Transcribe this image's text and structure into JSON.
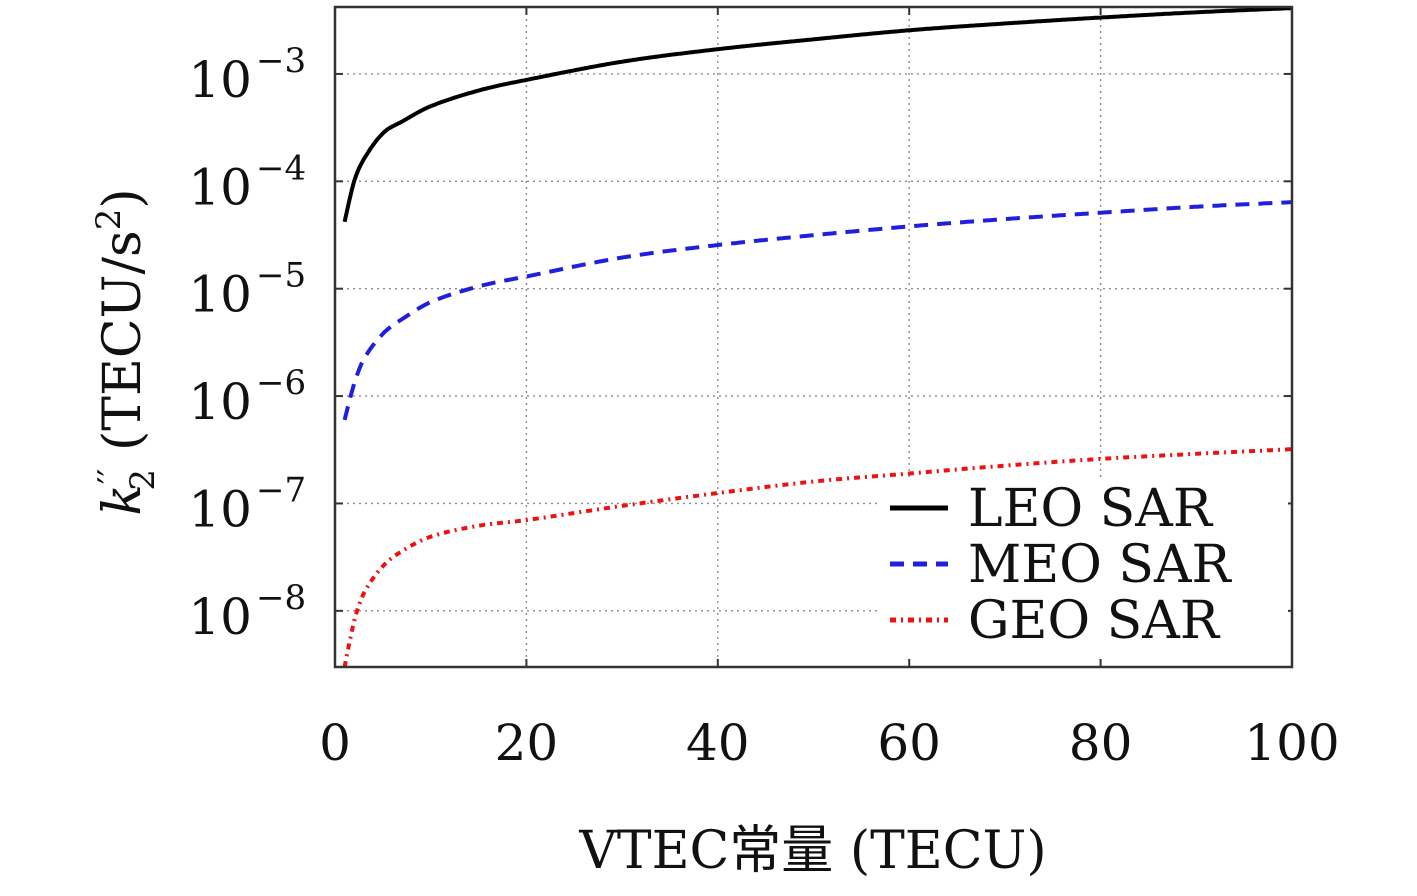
{
  "chart_data": {
    "type": "line",
    "xlabel": "VTEC常量 (TECU)",
    "ylabel": {
      "symbol": "k",
      "prime": "′′",
      "subscript": "2",
      "unit": "(TECU/s",
      "unit_sup": "2",
      "unit_close": ")"
    },
    "xlim": [
      0,
      100
    ],
    "ylim": [
      3e-09,
      0.0042
    ],
    "yscale": "log",
    "grid": true,
    "legend_position": "lower-right",
    "x_ticks": [
      {
        "value": 0,
        "label": "0"
      },
      {
        "value": 20,
        "label": "20"
      },
      {
        "value": 40,
        "label": "40"
      },
      {
        "value": 60,
        "label": "60"
      },
      {
        "value": 80,
        "label": "80"
      },
      {
        "value": 100,
        "label": "100"
      }
    ],
    "y_ticks": [
      {
        "value": 0.001,
        "base": "10",
        "exp": "−3"
      },
      {
        "value": 0.0001,
        "base": "10",
        "exp": "−4"
      },
      {
        "value": 1e-05,
        "base": "10",
        "exp": "−5"
      },
      {
        "value": 1e-06,
        "base": "10",
        "exp": "−6"
      },
      {
        "value": 1e-07,
        "base": "10",
        "exp": "−7"
      },
      {
        "value": 1e-08,
        "base": "10",
        "exp": "−8"
      }
    ],
    "series": [
      {
        "name": "LEO SAR",
        "color": "#000000",
        "style": "solid",
        "x": [
          1,
          2,
          3,
          5,
          7,
          10,
          15,
          20,
          30,
          40,
          50,
          60,
          70,
          80,
          90,
          100
        ],
        "y": [
          4.2e-05,
          0.0001,
          0.00016,
          0.00028,
          0.00036,
          0.0005,
          0.0007,
          0.00088,
          0.0013,
          0.0017,
          0.0021,
          0.00255,
          0.00295,
          0.00335,
          0.00375,
          0.0041
        ]
      },
      {
        "name": "MEO SAR",
        "color": "#1f1fdd",
        "style": "dashed",
        "x": [
          1,
          2,
          3,
          5,
          7,
          10,
          15,
          20,
          30,
          40,
          50,
          60,
          70,
          80,
          90,
          100
        ],
        "y": [
          6e-07,
          1.3e-06,
          2.2e-06,
          3.8e-06,
          5.2e-06,
          7.5e-06,
          1.05e-05,
          1.3e-05,
          1.95e-05,
          2.55e-05,
          3.15e-05,
          3.8e-05,
          4.45e-05,
          5.1e-05,
          5.8e-05,
          6.4e-05
        ]
      },
      {
        "name": "GEO SAR",
        "color": "#ee1111",
        "style": "dash-dot",
        "x": [
          1,
          2,
          3,
          5,
          7,
          10,
          15,
          20,
          30,
          40,
          50,
          60,
          70,
          80,
          90,
          100
        ],
        "y": [
          3e-09,
          8e-09,
          1.45e-08,
          2.6e-08,
          3.6e-08,
          4.9e-08,
          6.2e-08,
          7e-08,
          9.5e-08,
          1.25e-07,
          1.6e-07,
          1.9e-07,
          2.25e-07,
          2.6e-07,
          2.9e-07,
          3.2e-07
        ]
      }
    ]
  }
}
